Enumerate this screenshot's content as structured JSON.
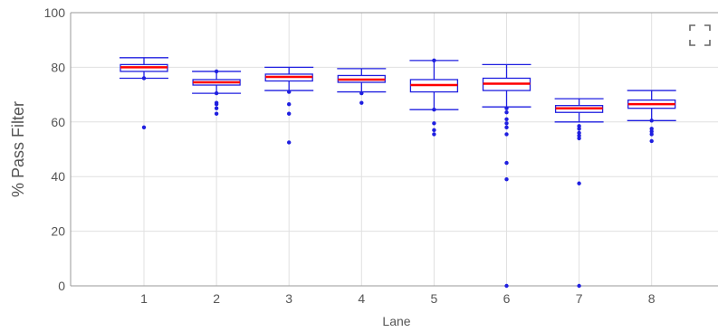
{
  "chart_data": {
    "type": "box",
    "title": "",
    "xlabel": "Lane",
    "ylabel": "% Pass Filter",
    "categories": [
      "1",
      "2",
      "3",
      "4",
      "5",
      "6",
      "7",
      "8"
    ],
    "ylim": [
      0,
      100
    ],
    "yticks": [
      "0",
      "20",
      "40",
      "60",
      "80",
      "100"
    ],
    "grid": true,
    "colors": {
      "box": "#1f1fe0",
      "median": "#ff0000",
      "outlier": "#1f1fe0",
      "grid": "#e0e0e0",
      "axis": "#555555"
    },
    "boxes": [
      {
        "lane": "1",
        "whisker_low": 76.0,
        "q1": 78.5,
        "median": 80.0,
        "q3": 81.0,
        "whisker_high": 83.5,
        "outliers": [
          58.0,
          76.0
        ]
      },
      {
        "lane": "2",
        "whisker_low": 70.5,
        "q1": 73.5,
        "median": 74.5,
        "q3": 75.5,
        "whisker_high": 78.5,
        "outliers": [
          63.0,
          65.0,
          66.5,
          67.0,
          70.5,
          78.5
        ]
      },
      {
        "lane": "3",
        "whisker_low": 71.5,
        "q1": 75.0,
        "median": 76.5,
        "q3": 77.5,
        "whisker_high": 80.0,
        "outliers": [
          52.5,
          63.0,
          66.5,
          71.0
        ]
      },
      {
        "lane": "4",
        "whisker_low": 71.0,
        "q1": 74.5,
        "median": 75.5,
        "q3": 77.0,
        "whisker_high": 79.5,
        "outliers": [
          67.0,
          70.5
        ]
      },
      {
        "lane": "5",
        "whisker_low": 64.5,
        "q1": 71.0,
        "median": 73.5,
        "q3": 75.5,
        "whisker_high": 82.5,
        "outliers": [
          55.5,
          57.0,
          59.5,
          64.5,
          82.5
        ]
      },
      {
        "lane": "6",
        "whisker_low": 65.5,
        "q1": 71.5,
        "median": 74.0,
        "q3": 76.0,
        "whisker_high": 81.0,
        "outliers": [
          0.0,
          39.0,
          45.0,
          55.5,
          58.0,
          59.5,
          61.0,
          63.5,
          65.0
        ]
      },
      {
        "lane": "7",
        "whisker_low": 60.0,
        "q1": 63.5,
        "median": 65.0,
        "q3": 66.0,
        "whisker_high": 68.5,
        "outliers": [
          0.0,
          37.5,
          54.0,
          55.0,
          56.0,
          57.5,
          58.5
        ]
      },
      {
        "lane": "8",
        "whisker_low": 60.5,
        "q1": 65.0,
        "median": 66.5,
        "q3": 68.0,
        "whisker_high": 71.5,
        "outliers": [
          53.0,
          55.5,
          56.5,
          57.5,
          60.5
        ]
      }
    ]
  },
  "toolbar": {
    "expand_icon": "expand-icon"
  }
}
